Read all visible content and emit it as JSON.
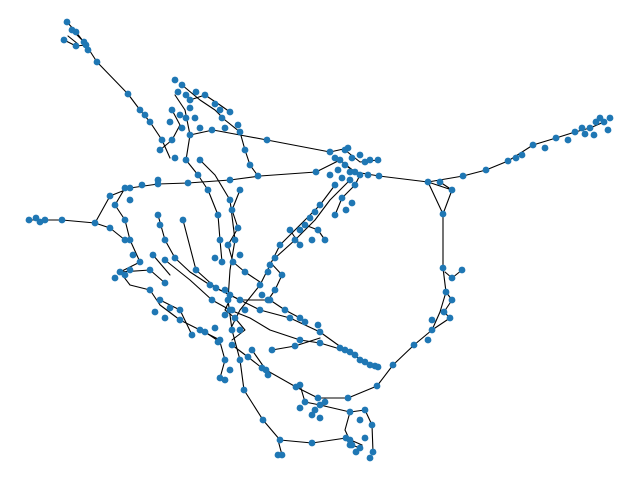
{
  "figure": {
    "type": "network-graph",
    "background_color": "#ffffff",
    "node_color": "#1f77b4",
    "edge_color": "#000000",
    "node_count_estimate": 330,
    "has_labels": false,
    "has_title": false
  }
}
